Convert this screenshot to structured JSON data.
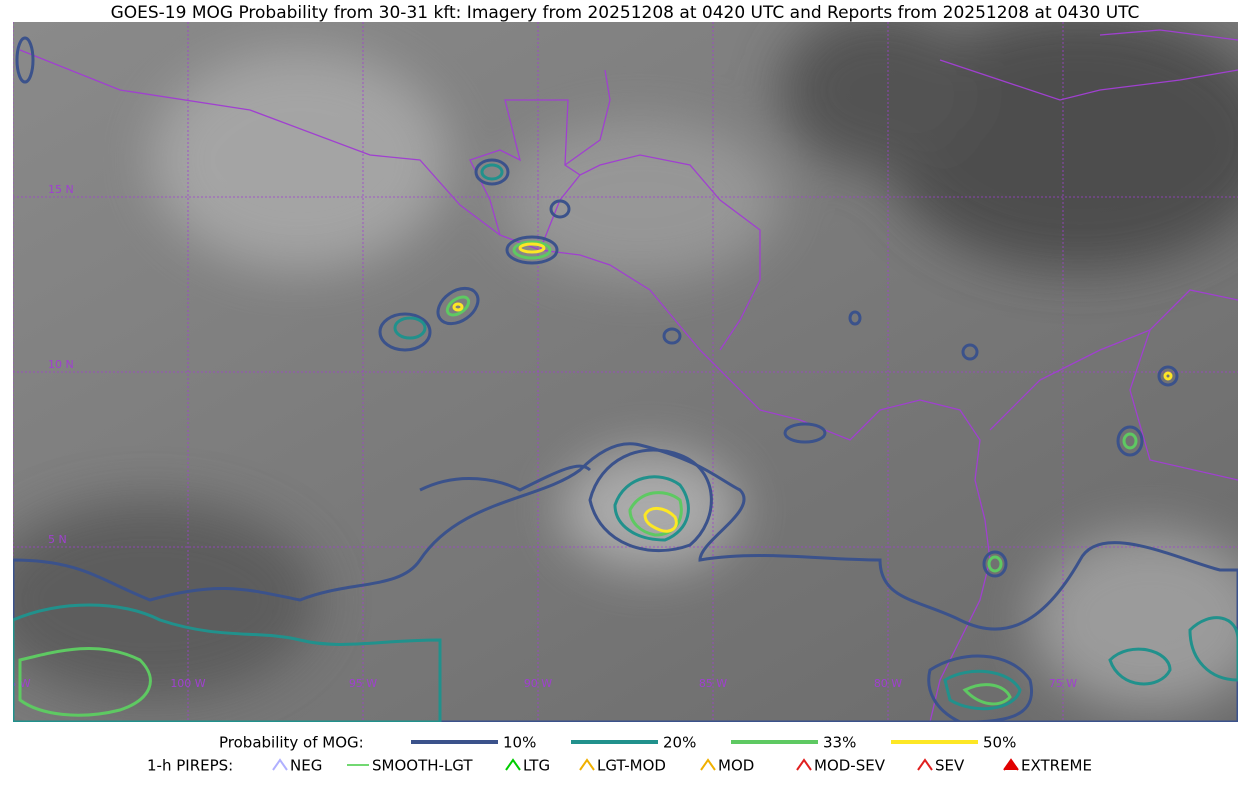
{
  "title": "GOES-19 MOG Probability from 30-31 kft: Imagery from 20251208 at 0420 UTC and Reports from 20251208 at 0430 UTC",
  "map": {
    "lat_labels": [
      "15 N",
      "10 N",
      "5 N"
    ],
    "lon_labels": [
      "105 W",
      "100 W",
      "95 W",
      "90 W",
      "85 W",
      "80 W",
      "75 W"
    ]
  },
  "legend": {
    "probability_title": "Probability of MOG:",
    "probability_items": [
      {
        "label": "10%",
        "color": "#3b528b"
      },
      {
        "label": "20%",
        "color": "#21918c"
      },
      {
        "label": "33%",
        "color": "#5ec962"
      },
      {
        "label": "50%",
        "color": "#fde725"
      }
    ],
    "pirep_title": "1-h PIREPS:",
    "pirep_items": [
      {
        "label": "NEG",
        "color": "#b0b0ff"
      },
      {
        "label": "SMOOTH-LGT",
        "color": "#44cc44"
      },
      {
        "label": "LTG",
        "color": "#00cc00"
      },
      {
        "label": "LGT-MOD",
        "color": "#f0b000"
      },
      {
        "label": "MOD",
        "color": "#f0b000"
      },
      {
        "label": "MOD-SEV",
        "color": "#e02020"
      },
      {
        "label": "SEV",
        "color": "#e02020"
      },
      {
        "label": "EXTREME",
        "color": "#e00000"
      }
    ]
  }
}
